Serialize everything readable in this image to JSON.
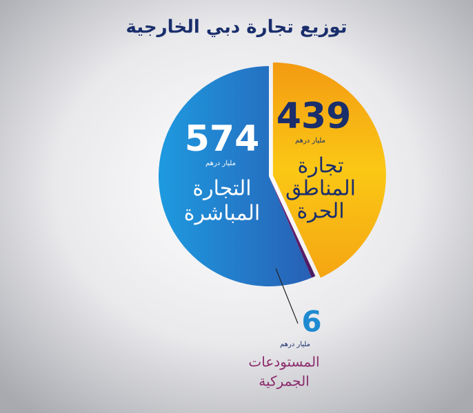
{
  "chart_data": {
    "type": "pie",
    "title": "توزيع تجارة دبي الخارجية",
    "unit": "مليار درهم",
    "categories": [
      [
        "تجارة",
        "المناطق",
        "الحرة"
      ],
      [
        "المستودعات",
        "الجمركية"
      ],
      [
        "التجارة",
        "المباشرة"
      ]
    ],
    "values": [
      439,
      6,
      574
    ],
    "colors": [
      "#f5b514",
      "#5b2270",
      "#2a7ccc"
    ]
  }
}
